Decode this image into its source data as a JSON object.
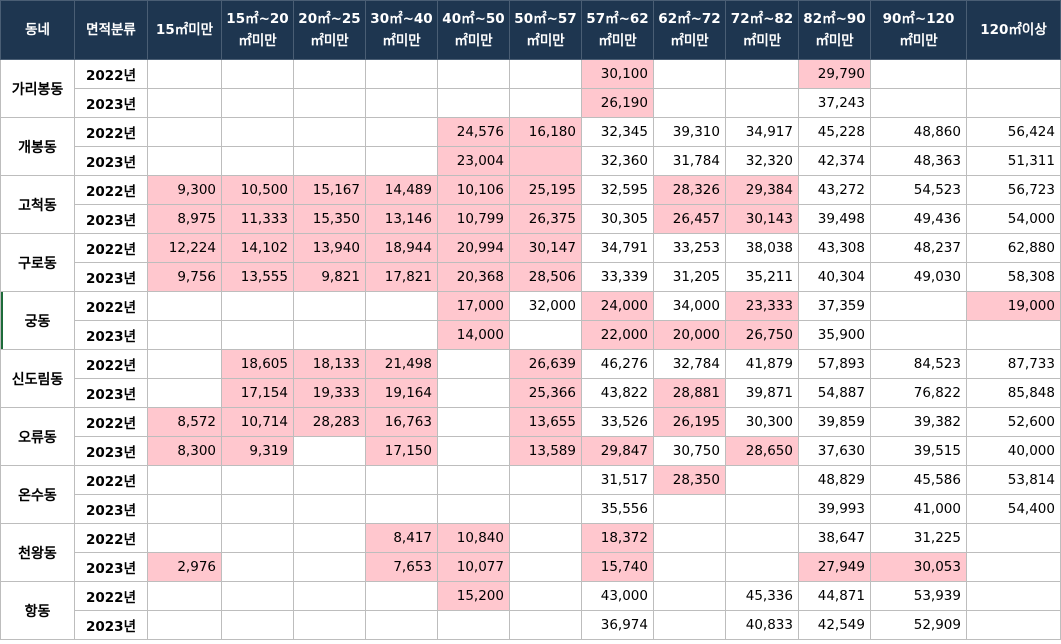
{
  "headers": [
    "동네",
    "면적분류",
    "15㎡미만",
    "15㎡~20\n㎡미만",
    "20㎡~25\n㎡미만",
    "30㎡~40\n㎡미만",
    "40㎡~50\n㎡미만",
    "50㎡~57\n㎡미만",
    "57㎡~62\n㎡미만",
    "62㎡~72\n㎡미만",
    "72㎡~82\n㎡미만",
    "82㎡~90\n㎡미만",
    "90㎡~120\n㎡미만",
    "120㎡이상"
  ],
  "groups": [
    {
      "dong": "가리봉동",
      "rows": [
        {
          "year": "2022년",
          "values": [
            "",
            "",
            "",
            "",
            "",
            "",
            "30,100",
            "",
            "",
            "29,790",
            "",
            ""
          ],
          "hl": [
            6,
            9
          ]
        },
        {
          "year": "2023년",
          "values": [
            "",
            "",
            "",
            "",
            "",
            "",
            "26,190",
            "",
            "",
            "37,243",
            "",
            ""
          ],
          "hl": [
            6
          ]
        }
      ]
    },
    {
      "dong": "개봉동",
      "rows": [
        {
          "year": "2022년",
          "values": [
            "",
            "",
            "",
            "",
            "24,576",
            "16,180",
            "32,345",
            "39,310",
            "34,917",
            "45,228",
            "48,860",
            "56,424"
          ],
          "hl": [
            4,
            5
          ]
        },
        {
          "year": "2023년",
          "values": [
            "",
            "",
            "",
            "",
            "23,004",
            "",
            "32,360",
            "31,784",
            "32,320",
            "42,374",
            "48,363",
            "51,311"
          ],
          "hl": [
            4,
            5
          ]
        }
      ]
    },
    {
      "dong": "고척동",
      "rows": [
        {
          "year": "2022년",
          "values": [
            "9,300",
            "10,500",
            "15,167",
            "14,489",
            "10,106",
            "25,195",
            "32,595",
            "28,326",
            "29,384",
            "43,272",
            "54,523",
            "56,723"
          ],
          "hl": [
            0,
            1,
            2,
            3,
            4,
            5,
            7,
            8
          ]
        },
        {
          "year": "2023년",
          "values": [
            "8,975",
            "11,333",
            "15,350",
            "13,146",
            "10,799",
            "26,375",
            "30,305",
            "26,457",
            "30,143",
            "39,498",
            "49,436",
            "54,000"
          ],
          "hl": [
            0,
            1,
            2,
            3,
            4,
            5,
            7,
            8
          ]
        }
      ]
    },
    {
      "dong": "구로동",
      "rows": [
        {
          "year": "2022년",
          "values": [
            "12,224",
            "14,102",
            "13,940",
            "18,944",
            "20,994",
            "30,147",
            "34,791",
            "33,253",
            "38,038",
            "43,308",
            "48,237",
            "62,880"
          ],
          "hl": [
            0,
            1,
            2,
            3,
            4,
            5
          ]
        },
        {
          "year": "2023년",
          "values": [
            "9,756",
            "13,555",
            "9,821",
            "17,821",
            "20,368",
            "28,506",
            "33,339",
            "31,205",
            "35,211",
            "40,304",
            "49,030",
            "58,308"
          ],
          "hl": [
            0,
            1,
            2,
            3,
            4,
            5
          ]
        }
      ]
    },
    {
      "dong": "궁동",
      "rows": [
        {
          "year": "2022년",
          "values": [
            "",
            "",
            "",
            "",
            "17,000",
            "32,000",
            "24,000",
            "34,000",
            "23,333",
            "37,359",
            "",
            "19,000"
          ],
          "hl": [
            4,
            6,
            8,
            11
          ]
        },
        {
          "year": "2023년",
          "values": [
            "",
            "",
            "",
            "",
            "14,000",
            "",
            "22,000",
            "20,000",
            "26,750",
            "35,900",
            "",
            ""
          ],
          "hl": [
            4,
            6,
            7,
            8
          ]
        }
      ]
    },
    {
      "dong": "신도림동",
      "rows": [
        {
          "year": "2022년",
          "values": [
            "",
            "18,605",
            "18,133",
            "21,498",
            "",
            "26,639",
            "46,276",
            "32,784",
            "41,879",
            "57,893",
            "84,523",
            "87,733"
          ],
          "hl": [
            1,
            2,
            3,
            5
          ]
        },
        {
          "year": "2023년",
          "values": [
            "",
            "17,154",
            "19,333",
            "19,164",
            "",
            "25,366",
            "43,822",
            "28,881",
            "39,871",
            "54,887",
            "76,822",
            "85,848"
          ],
          "hl": [
            1,
            2,
            3,
            5,
            7
          ]
        }
      ]
    },
    {
      "dong": "오류동",
      "rows": [
        {
          "year": "2022년",
          "values": [
            "8,572",
            "10,714",
            "28,283",
            "16,763",
            "",
            "13,655",
            "33,526",
            "26,195",
            "30,300",
            "39,859",
            "39,382",
            "52,600"
          ],
          "hl": [
            0,
            1,
            2,
            3,
            5,
            7
          ]
        },
        {
          "year": "2023년",
          "values": [
            "8,300",
            "9,319",
            "",
            "17,150",
            "",
            "13,589",
            "29,847",
            "30,750",
            "28,650",
            "37,630",
            "39,515",
            "40,000"
          ],
          "hl": [
            0,
            1,
            3,
            5,
            6,
            8
          ]
        }
      ]
    },
    {
      "dong": "온수동",
      "rows": [
        {
          "year": "2022년",
          "values": [
            "",
            "",
            "",
            "",
            "",
            "",
            "31,517",
            "28,350",
            "",
            "48,829",
            "45,586",
            "53,814"
          ],
          "hl": [
            7
          ]
        },
        {
          "year": "2023년",
          "values": [
            "",
            "",
            "",
            "",
            "",
            "",
            "35,556",
            "",
            "",
            "39,993",
            "41,000",
            "54,400"
          ],
          "hl": []
        }
      ]
    },
    {
      "dong": "천왕동",
      "rows": [
        {
          "year": "2022년",
          "values": [
            "",
            "",
            "",
            "8,417",
            "10,840",
            "",
            "18,372",
            "",
            "",
            "38,647",
            "31,225",
            ""
          ],
          "hl": [
            3,
            4,
            6
          ]
        },
        {
          "year": "2023년",
          "values": [
            "2,976",
            "",
            "",
            "7,653",
            "10,077",
            "",
            "15,740",
            "",
            "",
            "27,949",
            "30,053",
            ""
          ],
          "hl": [
            0,
            3,
            4,
            6,
            9,
            10
          ]
        }
      ]
    },
    {
      "dong": "항동",
      "rows": [
        {
          "year": "2022년",
          "values": [
            "",
            "",
            "",
            "",
            "15,200",
            "",
            "43,000",
            "",
            "45,336",
            "44,871",
            "53,939",
            ""
          ],
          "hl": [
            4
          ]
        },
        {
          "year": "2023년",
          "values": [
            "",
            "",
            "",
            "",
            "",
            "",
            "36,974",
            "",
            "40,833",
            "42,549",
            "52,909",
            ""
          ],
          "hl": []
        }
      ]
    }
  ]
}
